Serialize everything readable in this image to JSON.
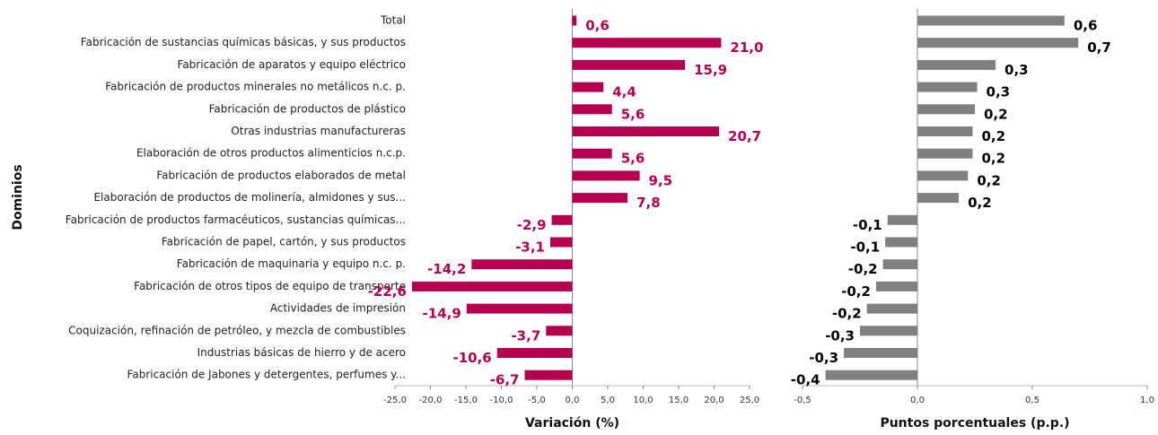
{
  "chart_data": [
    {
      "type": "bar",
      "orientation": "horizontal",
      "color": "#b5004f",
      "label_color": "#b5004f",
      "ylabel": "Dominios",
      "xlabel": "Variación (%)",
      "categories": [
        "Total",
        "Fabricación de sustancias químicas básicas, y sus productos",
        "Fabricación de aparatos y equipo eléctrico",
        "Fabricación de productos minerales no metálicos n.c. p.",
        "Fabricación de productos de plástico",
        "Otras industrias manufactureras",
        "Elaboración de otros productos alimenticios n.c.p.",
        "Fabricación de productos elaborados de metal",
        "Elaboración de productos de molinería, almidones y sus...",
        "Fabricación de productos farmacéuticos, sustancias químicas...",
        "Fabricación de papel, cartón, y sus productos",
        "Fabricación de maquinaria y equipo n.c. p.",
        "Fabricación de otros tipos de equipo de transporte",
        "Actividades de impresión",
        "Coquización, refinación de petróleo, y mezcla de combustibles",
        "Industrias básicas de hierro y de acero",
        "Fabricación de Jabones y detergentes, perfumes y..."
      ],
      "values": [
        0.6,
        21.0,
        15.9,
        4.4,
        5.6,
        20.7,
        5.6,
        9.5,
        7.8,
        -2.9,
        -3.1,
        -14.2,
        -22.6,
        -14.9,
        -3.7,
        -10.6,
        -6.7
      ],
      "value_labels": [
        "0,6",
        "21,0",
        "15,9",
        "4,4",
        "5,6",
        "20,7",
        "5,6",
        "9,5",
        "7,8",
        "-2,9",
        "-3,1",
        "-14,2",
        "-22,6",
        "-14,9",
        "-3,7",
        "-10,6",
        "-6,7"
      ],
      "xlim": [
        -25,
        25
      ],
      "xticks": [
        {
          "value": -25,
          "label": "-25,0"
        },
        {
          "value": -20,
          "label": "-20,0"
        },
        {
          "value": -15,
          "label": "-15,0"
        },
        {
          "value": -10,
          "label": "-10,0"
        },
        {
          "value": -5,
          "label": "-5,0"
        },
        {
          "value": 0,
          "label": "0,0"
        },
        {
          "value": 5,
          "label": "5,0"
        },
        {
          "value": 10,
          "label": "10,0"
        },
        {
          "value": 15,
          "label": "15,0"
        },
        {
          "value": 20,
          "label": "20,0"
        },
        {
          "value": 25,
          "label": "25,0"
        }
      ]
    },
    {
      "type": "bar",
      "orientation": "horizontal",
      "color": "#808080",
      "label_color": "#000000",
      "xlabel": "Puntos porcentuales (p.p.)",
      "values": [
        0.64,
        0.7,
        0.34,
        0.26,
        0.25,
        0.24,
        0.24,
        0.22,
        0.18,
        -0.13,
        -0.14,
        -0.15,
        -0.18,
        -0.22,
        -0.25,
        -0.32,
        -0.4
      ],
      "value_labels": [
        "0,6",
        "0,7",
        "0,3",
        "0,3",
        "0,2",
        "0,2",
        "0,2",
        "0,2",
        "0,2",
        "-0,1",
        "-0,1",
        "-0,2",
        "-0,2",
        "-0,2",
        "-0,3",
        "-0,3",
        "-0,4"
      ],
      "xlim": [
        -0.5,
        1.0
      ],
      "xticks": [
        {
          "value": -0.5,
          "label": "-0,5"
        },
        {
          "value": 0,
          "label": "0,0"
        },
        {
          "value": 0.5,
          "label": "0,5"
        },
        {
          "value": 1.0,
          "label": "1,0"
        }
      ]
    }
  ]
}
